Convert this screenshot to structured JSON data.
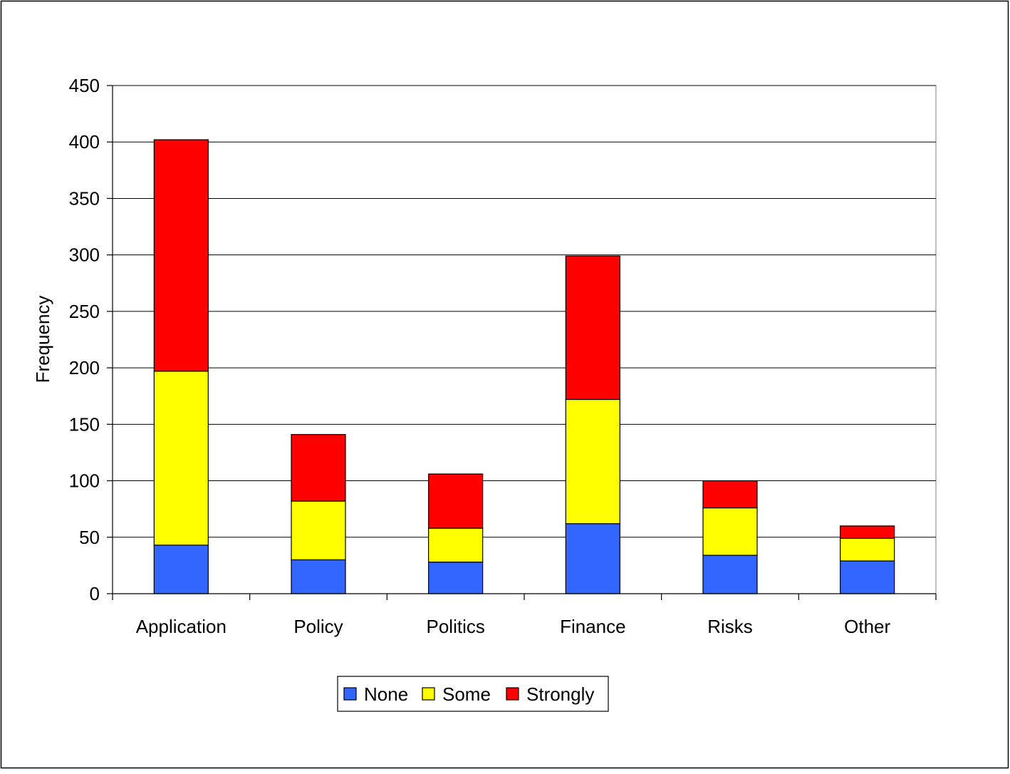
{
  "chart_data": {
    "type": "bar",
    "stacked": true,
    "title": "",
    "xlabel": "",
    "ylabel": "Frequency",
    "ylim": [
      0,
      450
    ],
    "yticks": [
      0,
      50,
      100,
      150,
      200,
      250,
      300,
      350,
      400,
      450
    ],
    "ytick_labels": [
      "0",
      "50",
      "100",
      "150",
      "200",
      "250",
      "300",
      "350",
      "400",
      "450"
    ],
    "grid": "horizontal",
    "legend_position": "bottom-center",
    "categories": [
      "Application",
      "Policy",
      "Politics",
      "Finance",
      "Risks",
      "Other"
    ],
    "series": [
      {
        "name": "None",
        "color": "#3366ff",
        "values": [
          43,
          30,
          28,
          62,
          34,
          29
        ]
      },
      {
        "name": "Some",
        "color": "#ffff00",
        "values": [
          154,
          52,
          30,
          110,
          42,
          20
        ]
      },
      {
        "name": "Strongly",
        "color": "#ff0000",
        "values": [
          205,
          59,
          48,
          127,
          24,
          11
        ]
      }
    ]
  }
}
